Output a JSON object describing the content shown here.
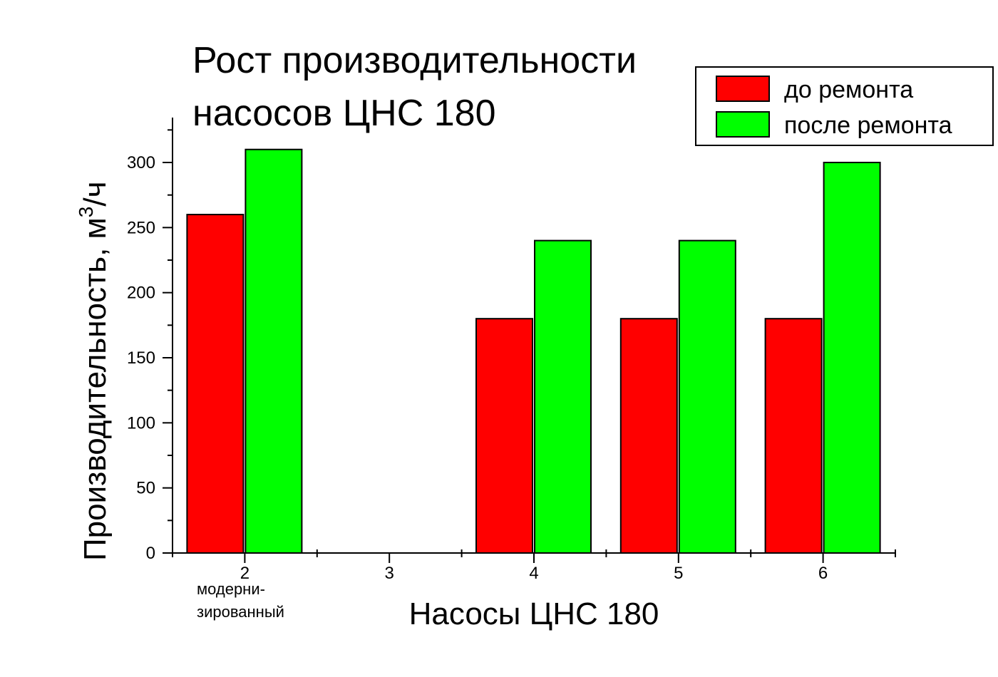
{
  "chart_data": {
    "type": "bar",
    "title_lines": [
      "Рост производительности",
      "насосов ЦНС 180"
    ],
    "xlabel": "Насосы ЦНС 180",
    "ylabel_main": "Производительность, м",
    "ylabel_sup": "3",
    "ylabel_tail": "/ч",
    "categories": [
      "2",
      "3",
      "4",
      "5",
      "6"
    ],
    "category_notes": [
      [
        "модерни-",
        "зированный"
      ],
      [],
      [],
      [],
      []
    ],
    "y_ticks": [
      "0",
      "50",
      "100",
      "150",
      "200",
      "250",
      "300"
    ],
    "ylim": [
      0,
      330
    ],
    "series": [
      {
        "name": "до ремонта",
        "color": "#ff0000",
        "values": [
          260,
          null,
          180,
          180,
          180
        ]
      },
      {
        "name": "после ремонта",
        "color": "#00ff00",
        "values": [
          310,
          null,
          240,
          240,
          300
        ]
      }
    ],
    "legend_position": "top-right",
    "grid": false
  }
}
